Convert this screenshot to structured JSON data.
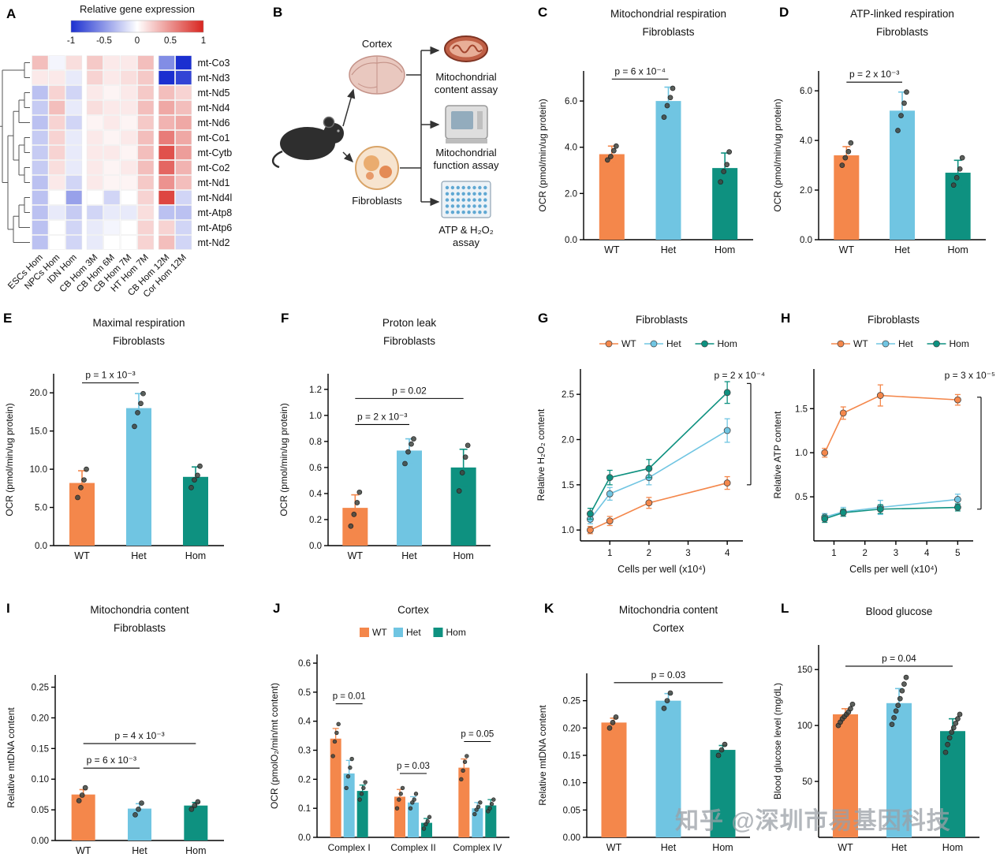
{
  "watermark": "知乎 @深圳市易基因科技",
  "letters": {
    "A": "A",
    "B": "B",
    "C": "C",
    "D": "D",
    "E": "E",
    "F": "F",
    "G": "G",
    "H": "H",
    "I": "I",
    "J": "J",
    "K": "K",
    "L": "L"
  },
  "colors": {
    "WT": "#F4874B",
    "Het": "#70C5E2",
    "Hom": "#0E9180",
    "point": "#3f4440",
    "heat_low": "#1B2FD0",
    "heat_high": "#D8251F"
  },
  "diagram": {
    "cortex": "Cortex",
    "fibroblasts": "Fibroblasts",
    "assay1_line1": "Mitochondrial",
    "assay1_line2": "content assay",
    "assay2_line1": "Mitochondrial",
    "assay2_line2": "function assay",
    "assay3_line1": "ATP & H₂O₂",
    "assay3_line2": "assay"
  },
  "chart_data": [
    {
      "panel": "A",
      "type": "heatmap",
      "colorbar_title": "Relative gene expression",
      "colorbar_ticks": [
        "-1",
        "-0.5",
        "0",
        "0.5",
        "1"
      ],
      "rows": [
        "mt-Co3",
        "mt-Nd3",
        "mt-Nd5",
        "mt-Nd4",
        "mt-Nd6",
        "mt-Co1",
        "mt-Cytb",
        "mt-Co2",
        "mt-Nd1",
        "mt-Nd4l",
        "mt-Atp8",
        "mt-Atp6",
        "mt-Nd2"
      ],
      "cols": [
        "ESCs Hom",
        "NPCs Hom",
        "IDN Hom",
        "CB Hom 3M",
        "CB Hom 6M",
        "CB Hom 7M",
        "HT Hom 7M",
        "CB Hom 12M",
        "Cor Hom 12M"
      ],
      "col_groups": [
        3,
        4,
        2
      ],
      "values": [
        [
          0.3,
          -0.05,
          0.15,
          0.25,
          0.1,
          0.1,
          0.3,
          -0.55,
          -1.0
        ],
        [
          0.1,
          0.1,
          -0.1,
          0.2,
          0.1,
          0.15,
          0.25,
          -1.0,
          -0.9
        ],
        [
          -0.3,
          0.2,
          -0.2,
          0.1,
          0.05,
          0.1,
          0.25,
          0.3,
          0.2
        ],
        [
          -0.25,
          0.3,
          -0.1,
          0.15,
          0.1,
          0.1,
          0.3,
          0.4,
          0.3
        ],
        [
          -0.3,
          0.2,
          -0.2,
          0.05,
          0.1,
          0.05,
          0.25,
          0.35,
          0.4
        ],
        [
          -0.25,
          0.2,
          -0.1,
          0.1,
          0.05,
          0.1,
          0.3,
          0.6,
          0.4
        ],
        [
          -0.25,
          0.2,
          -0.1,
          0.1,
          0.1,
          0.05,
          0.3,
          0.8,
          0.45
        ],
        [
          -0.25,
          0.15,
          -0.1,
          0.1,
          0.05,
          0.1,
          0.3,
          0.7,
          0.35
        ],
        [
          -0.3,
          0.1,
          -0.2,
          0.1,
          0.05,
          0.05,
          0.25,
          0.5,
          0.3
        ],
        [
          -0.3,
          0.0,
          -0.45,
          0.0,
          -0.2,
          0.0,
          0.2,
          0.85,
          -0.2
        ],
        [
          -0.3,
          -0.1,
          -0.25,
          -0.2,
          -0.1,
          -0.1,
          0.15,
          -0.3,
          -0.3
        ],
        [
          -0.3,
          0.0,
          -0.2,
          -0.1,
          -0.05,
          0.0,
          0.2,
          0.2,
          -0.2
        ],
        [
          -0.3,
          0.0,
          -0.2,
          -0.1,
          0.0,
          0.0,
          0.2,
          0.3,
          -0.2
        ]
      ]
    },
    {
      "panel": "C",
      "type": "bar",
      "titles": [
        "Mitochondrial respiration",
        "Fibroblasts"
      ],
      "ylabel": "OCR (pmol/min/ug protein)",
      "categories": [
        "WT",
        "Het",
        "Hom"
      ],
      "values": [
        3.7,
        6.0,
        3.1
      ],
      "errors": [
        0.35,
        0.6,
        0.65
      ],
      "points": [
        [
          3.45,
          3.6,
          3.85,
          4.05
        ],
        [
          5.3,
          5.8,
          6.15,
          6.55
        ],
        [
          2.5,
          2.95,
          3.25,
          3.8
        ]
      ],
      "ylim": [
        0,
        7.3
      ],
      "yticks": [
        0,
        2,
        4,
        6
      ],
      "dec": 1,
      "pvals": [
        {
          "text": "p = 6 x 10⁻⁴",
          "from": 0,
          "to": 1,
          "y": 6.95
        }
      ]
    },
    {
      "panel": "D",
      "type": "bar",
      "titles": [
        "ATP-linked respiration",
        "Fibroblasts"
      ],
      "ylabel": "OCR (pmol/min/ug protein)",
      "categories": [
        "WT",
        "Het",
        "Hom"
      ],
      "values": [
        3.4,
        5.2,
        2.7
      ],
      "errors": [
        0.35,
        0.75,
        0.5
      ],
      "points": [
        [
          3.0,
          3.3,
          3.55,
          3.9
        ],
        [
          4.4,
          5.0,
          5.5,
          5.95
        ],
        [
          2.2,
          2.5,
          2.85,
          3.3
        ]
      ],
      "ylim": [
        0,
        6.8
      ],
      "yticks": [
        0,
        2,
        4,
        6
      ],
      "dec": 1,
      "pvals": [
        {
          "text": "p = 2 x 10⁻³",
          "from": 0,
          "to": 1,
          "y": 6.35
        }
      ]
    },
    {
      "panel": "E",
      "type": "bar",
      "titles": [
        "Maximal respiration",
        "Fibroblasts"
      ],
      "ylabel": "OCR (pmol/min/ug protein)",
      "categories": [
        "WT",
        "Het",
        "Hom"
      ],
      "values": [
        8.2,
        18.0,
        9.0
      ],
      "errors": [
        1.6,
        1.9,
        1.3
      ],
      "points": [
        [
          6.3,
          7.6,
          8.6,
          10.0
        ],
        [
          15.6,
          17.4,
          18.6,
          19.9
        ],
        [
          7.6,
          8.6,
          9.2,
          10.4
        ]
      ],
      "ylim": [
        0,
        22.5
      ],
      "yticks": [
        0,
        5,
        10,
        15,
        20
      ],
      "dec": 1,
      "pvals": [
        {
          "text": "p = 1 x 10⁻³",
          "from": 0,
          "to": 1,
          "y": 21.3
        }
      ]
    },
    {
      "panel": "F",
      "type": "bar",
      "titles": [
        "Proton leak",
        "Fibroblasts"
      ],
      "ylabel": "OCR (pmol/min/ug protein)",
      "categories": [
        "WT",
        "Het",
        "Hom"
      ],
      "values": [
        0.29,
        0.73,
        0.6
      ],
      "errors": [
        0.1,
        0.09,
        0.14
      ],
      "points": [
        [
          0.15,
          0.24,
          0.33,
          0.41
        ],
        [
          0.63,
          0.72,
          0.78,
          0.82
        ],
        [
          0.42,
          0.56,
          0.68,
          0.77
        ]
      ],
      "ylim": [
        0,
        1.32
      ],
      "yticks": [
        0,
        0.2,
        0.4,
        0.6,
        0.8,
        1.0,
        1.2
      ],
      "dec": 1,
      "pvals": [
        {
          "text": "p = 2 x 10⁻³",
          "from": 0,
          "to": 1,
          "y": 0.93
        },
        {
          "text": "p = 0.02",
          "from": 0,
          "to": 2,
          "y": 1.13
        }
      ]
    },
    {
      "panel": "G",
      "type": "line",
      "titles": [
        "Fibroblasts"
      ],
      "legend": [
        "WT",
        "Het",
        "Hom"
      ],
      "xlabel": "Cells per well (x10⁴)",
      "ylabel": "Relative H₂O₂ content",
      "x": [
        0.5,
        1,
        2,
        4
      ],
      "xticks": [
        1,
        2,
        3,
        4
      ],
      "xlim": [
        0.25,
        4.4
      ],
      "series": [
        {
          "name": "WT",
          "y": [
            1.0,
            1.1,
            1.3,
            1.52
          ],
          "err": [
            0.04,
            0.05,
            0.06,
            0.07
          ]
        },
        {
          "name": "Het",
          "y": [
            1.12,
            1.4,
            1.58,
            2.1
          ],
          "err": [
            0.05,
            0.07,
            0.08,
            0.13
          ]
        },
        {
          "name": "Hom",
          "y": [
            1.18,
            1.58,
            1.68,
            2.52
          ],
          "err": [
            0.06,
            0.08,
            0.1,
            0.12
          ]
        }
      ],
      "ylim": [
        0.88,
        2.78
      ],
      "yticks": [
        1.0,
        1.5,
        2.0,
        2.5
      ],
      "dec": 1,
      "pval": "p = 2 x 10⁻⁴",
      "bracket": [
        1.5,
        2.62
      ]
    },
    {
      "panel": "H",
      "type": "line",
      "titles": [
        "Fibroblasts"
      ],
      "legend": [
        "WT",
        "Het",
        "Hom"
      ],
      "xlabel": "Cells per well (x10⁴)",
      "ylabel": "Relative ATP content",
      "x": [
        0.7,
        1.3,
        2.5,
        5
      ],
      "xticks": [
        1,
        2,
        3,
        4,
        5
      ],
      "xlim": [
        0.35,
        5.5
      ],
      "series": [
        {
          "name": "WT",
          "y": [
            1.0,
            1.45,
            1.65,
            1.6
          ],
          "err": [
            0.05,
            0.07,
            0.12,
            0.06
          ]
        },
        {
          "name": "Het",
          "y": [
            0.27,
            0.33,
            0.38,
            0.47
          ],
          "err": [
            0.04,
            0.05,
            0.08,
            0.06
          ]
        },
        {
          "name": "Hom",
          "y": [
            0.25,
            0.32,
            0.36,
            0.38
          ],
          "err": [
            0.04,
            0.04,
            0.05,
            0.04
          ]
        }
      ],
      "ylim": [
        0,
        1.95
      ],
      "yticks": [
        0.5,
        1.0,
        1.5
      ],
      "dec": 1,
      "pval": "p = 3 x 10⁻⁵",
      "bracket": [
        0.36,
        1.63
      ]
    },
    {
      "panel": "I",
      "type": "bar",
      "titles": [
        "Mitochondria content",
        "Fibroblasts"
      ],
      "ylabel": "Relative mtDNA content",
      "categories": [
        "WT",
        "Het",
        "Hom"
      ],
      "values": [
        0.075,
        0.052,
        0.057
      ],
      "errors": [
        0.008,
        0.008,
        0.005
      ],
      "points": [
        [
          0.065,
          0.074,
          0.086
        ],
        [
          0.042,
          0.051,
          0.061
        ],
        [
          0.051,
          0.057,
          0.063
        ]
      ],
      "ylim": [
        0,
        0.27
      ],
      "yticks": [
        0,
        0.05,
        0.1,
        0.15,
        0.2,
        0.25
      ],
      "dec": 2,
      "pvals": [
        {
          "text": "p = 6 x 10⁻³",
          "from": 0,
          "to": 1,
          "y": 0.118
        },
        {
          "text": "p = 4 x 10⁻³",
          "from": 0,
          "to": 2,
          "y": 0.158
        }
      ]
    },
    {
      "panel": "J",
      "type": "groupbar",
      "titles": [
        "Cortex"
      ],
      "legend": [
        "WT",
        "Het",
        "Hom"
      ],
      "ylabel": "OCR (pmolO₂/min/mt content)",
      "groups": [
        "Complex I",
        "Complex II",
        "Complex IV"
      ],
      "series": [
        {
          "name": "WT",
          "values": [
            0.34,
            0.14,
            0.24
          ],
          "errors": [
            0.035,
            0.025,
            0.03
          ],
          "points": [
            [
              0.28,
              0.33,
              0.36,
              0.39
            ],
            [
              0.1,
              0.13,
              0.15,
              0.17
            ],
            [
              0.2,
              0.23,
              0.26,
              0.28
            ]
          ]
        },
        {
          "name": "Het",
          "values": [
            0.22,
            0.12,
            0.1
          ],
          "errors": [
            0.045,
            0.02,
            0.02
          ],
          "points": [
            [
              0.17,
              0.21,
              0.24,
              0.27
            ],
            [
              0.1,
              0.12,
              0.13,
              0.15
            ],
            [
              0.08,
              0.095,
              0.105,
              0.12
            ]
          ]
        },
        {
          "name": "Hom",
          "values": [
            0.16,
            0.05,
            0.11
          ],
          "errors": [
            0.02,
            0.015,
            0.02
          ],
          "points": [
            [
              0.13,
              0.15,
              0.17,
              0.19
            ],
            [
              0.03,
              0.045,
              0.055,
              0.07
            ],
            [
              0.09,
              0.1,
              0.115,
              0.13
            ]
          ]
        }
      ],
      "ylim": [
        0,
        0.63
      ],
      "yticks": [
        0,
        0.1,
        0.2,
        0.3,
        0.4,
        0.5,
        0.6
      ],
      "dec": 1,
      "pvals": [
        {
          "text": "p = 0.01",
          "group": 0,
          "y": 0.46
        },
        {
          "text": "p = 0.03",
          "group": 1,
          "y": 0.22
        },
        {
          "text": "p = 0.05",
          "group": 2,
          "y": 0.33
        }
      ]
    },
    {
      "panel": "K",
      "type": "bar",
      "titles": [
        "Mitochondria content",
        "Cortex"
      ],
      "ylabel": "Relative mtDNA content",
      "categories": [
        "WT",
        "Het",
        "Hom"
      ],
      "values": [
        0.21,
        0.25,
        0.16
      ],
      "errors": [
        0.008,
        0.013,
        0.008
      ],
      "points": [
        [
          0.2,
          0.21,
          0.22
        ],
        [
          0.236,
          0.25,
          0.264
        ],
        [
          0.15,
          0.16,
          0.17
        ]
      ],
      "ylim": [
        0,
        0.3
      ],
      "yticks": [
        0,
        0.05,
        0.1,
        0.15,
        0.2,
        0.25
      ],
      "dec": 2,
      "pvals": [
        {
          "text": "p = 0.03",
          "from": 0,
          "to": 2,
          "y": 0.283
        }
      ]
    },
    {
      "panel": "L",
      "type": "bar",
      "titles": [
        "Blood glucose"
      ],
      "ylabel": "Blood glucose level (mg/dL)",
      "categories": [
        "WT",
        "Het",
        "Hom"
      ],
      "values": [
        110,
        120,
        95
      ],
      "errors": [
        5,
        13,
        11
      ],
      "points": [
        [
          100,
          103,
          106,
          108,
          110,
          112,
          115,
          119
        ],
        [
          101,
          107,
          113,
          118,
          124,
          131,
          137,
          143
        ],
        [
          76,
          83,
          89,
          94,
          98,
          102,
          106,
          110
        ]
      ],
      "ylim": [
        0,
        172
      ],
      "yticks": [
        50,
        100,
        150
      ],
      "dec": 0,
      "pvals": [
        {
          "text": "p = 0.04",
          "from": 0,
          "to": 2,
          "y": 153
        }
      ]
    }
  ]
}
